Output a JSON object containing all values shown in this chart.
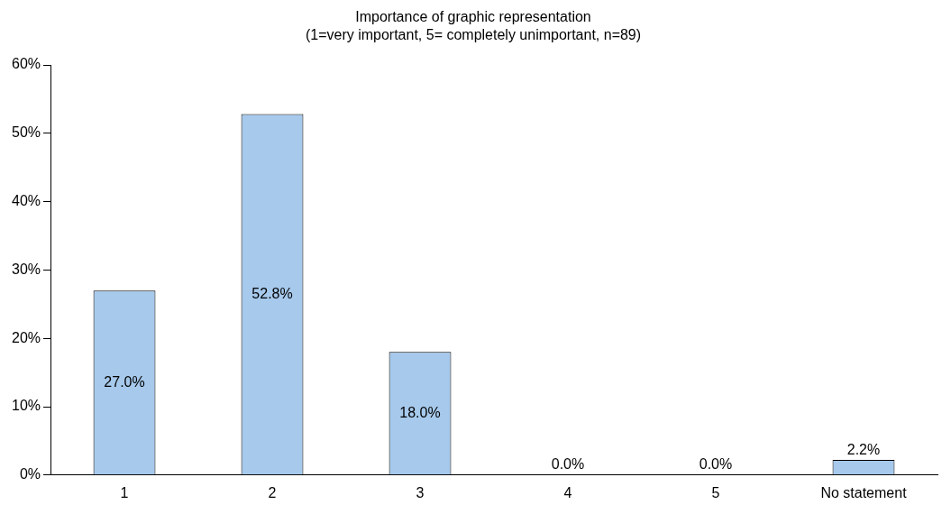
{
  "chart_data": {
    "type": "bar",
    "title": "Importance of graphic representation",
    "subtitle": "(1=very important, 5= completely unimportant, n=89)",
    "categories": [
      "1",
      "2",
      "3",
      "4",
      "5",
      "No statement"
    ],
    "values": [
      27.0,
      52.8,
      18.0,
      0.0,
      0.0,
      2.2
    ],
    "value_labels": [
      "27.0%",
      "52.8%",
      "18.0%",
      "0.0%",
      "0.0%",
      "2.2%"
    ],
    "color": "#a6c9ec",
    "ylim": [
      0,
      60
    ],
    "yticks": [
      {
        "value": 0,
        "label": "0%"
      },
      {
        "value": 10,
        "label": "10%"
      },
      {
        "value": 20,
        "label": "20%"
      },
      {
        "value": 30,
        "label": "30%"
      },
      {
        "value": 40,
        "label": "40%"
      },
      {
        "value": 50,
        "label": "50%"
      },
      {
        "value": 60,
        "label": "60%"
      }
    ],
    "grid": false,
    "legend": false
  }
}
